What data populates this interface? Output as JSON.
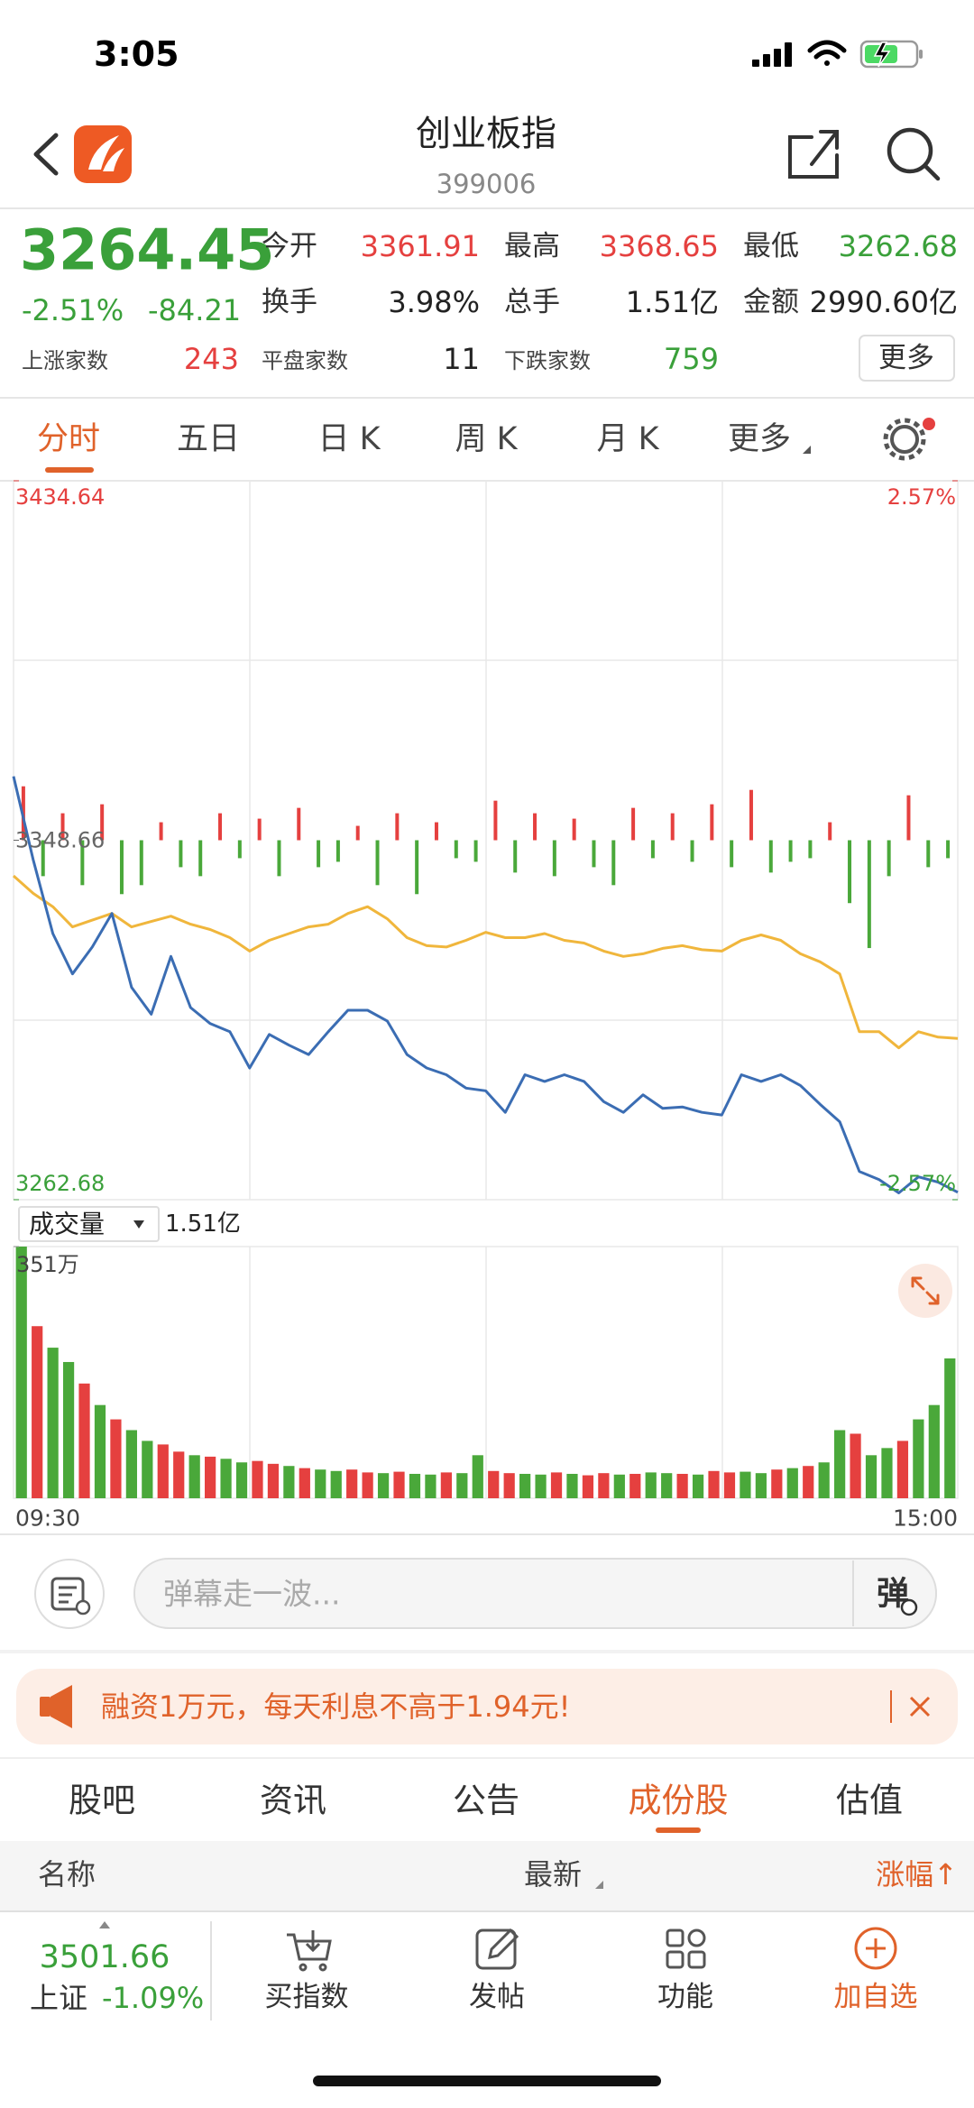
{
  "status_bar": {
    "time": "3:05"
  },
  "header": {
    "title": "创业板指",
    "code": "399006"
  },
  "quote": {
    "price": "3264.45",
    "change_pct": "-2.51%",
    "change": "-84.21",
    "stats": [
      [
        "今开",
        "3361.91"
      ],
      [
        "最高",
        "3368.65"
      ],
      [
        "最低",
        "3262.68"
      ],
      [
        "换手",
        "3.98%"
      ],
      [
        "总手",
        "1.51亿"
      ],
      [
        "金额",
        "2990.60亿"
      ]
    ],
    "breadth": [
      [
        "上涨家数",
        "243"
      ],
      [
        "平盘家数",
        "11"
      ],
      [
        "下跌家数",
        "759"
      ]
    ],
    "more": "更多"
  },
  "chart_tabs": [
    "分时",
    "五日",
    "日 K",
    "周 K",
    "月 K",
    "更多"
  ],
  "intraday": {
    "type": "line",
    "ylim": [
      3262.68,
      3434.64
    ],
    "yticks": [
      3262.68,
      3348.66,
      3434.64
    ],
    "y2lim": [
      -2.57,
      2.57
    ],
    "y2ticks": [
      {
        "value": -2.57,
        "label": "-2.57%"
      },
      {
        "value": 2.57,
        "label": "2.57%"
      }
    ],
    "xlabels": [
      "09:30",
      "15:00"
    ],
    "price_color": "#3b6db3",
    "avg_color": "#f0b63c",
    "up_color": "#e5403f",
    "down_color": "#4aa83a",
    "price": [
      3363.93,
      3344.0,
      3326.32,
      3316.68,
      3323.11,
      3331.14,
      3313.46,
      3307.04,
      3320.86,
      3308.64,
      3304.79,
      3302.86,
      3294.18,
      3302.21,
      3299.64,
      3297.39,
      3302.86,
      3308.0,
      3308.0,
      3305.43,
      3297.39,
      3294.18,
      3292.57,
      3289.36,
      3288.72,
      3283.57,
      3292.57,
      3290.97,
      3292.57,
      3290.97,
      3286.14,
      3283.57,
      3287.75,
      3284.54,
      3284.86,
      3283.57,
      3282.93,
      3292.57,
      3290.97,
      3292.57,
      3290.0,
      3285.5,
      3281.32,
      3269.43,
      3267.5,
      3264.29,
      3268.14,
      3266.86,
      3264.45
    ],
    "average": [
      3340.14,
      3335.96,
      3332.75,
      3327.93,
      3329.54,
      3331.14,
      3327.93,
      3329.21,
      3330.5,
      3328.57,
      3327.29,
      3325.36,
      3322.14,
      3324.71,
      3326.32,
      3327.93,
      3328.57,
      3331.14,
      3332.75,
      3329.86,
      3325.36,
      3323.43,
      3323.11,
      3324.71,
      3326.64,
      3325.36,
      3325.36,
      3326.32,
      3324.71,
      3324.07,
      3322.14,
      3320.86,
      3321.5,
      3322.79,
      3323.43,
      3322.46,
      3322.14,
      3324.71,
      3326.0,
      3324.71,
      3321.5,
      3319.57,
      3316.68,
      3302.86,
      3302.86,
      3299.0,
      3302.86,
      3301.57,
      3301.25
    ],
    "breadth_lim": [
      -100,
      100
    ],
    "breadth": [
      30,
      -20,
      15,
      -25,
      20,
      -30,
      -25,
      10,
      -15,
      -20,
      15,
      -10,
      12,
      -20,
      18,
      -15,
      -12,
      8,
      -25,
      15,
      -30,
      10,
      -10,
      -12,
      22,
      -18,
      15,
      -20,
      12,
      -15,
      -25,
      18,
      -10,
      15,
      -12,
      20,
      -15,
      28,
      -18,
      -12,
      -10,
      10,
      -35,
      -60,
      -20,
      25,
      -15,
      -10
    ]
  },
  "volume": {
    "type": "bar",
    "label": "成交量",
    "total": "1.51亿",
    "ylim": [
      0,
      351
    ],
    "yticks": [
      {
        "value": 351,
        "label": "351万"
      }
    ],
    "values": [
      351,
      240,
      210,
      190,
      160,
      130,
      110,
      95,
      80,
      75,
      65,
      60,
      58,
      55,
      50,
      52,
      48,
      45,
      42,
      40,
      38,
      40,
      36,
      35,
      37,
      34,
      33,
      36,
      35,
      60,
      38,
      35,
      34,
      33,
      36,
      34,
      32,
      35,
      33,
      34,
      36,
      35,
      34,
      33,
      38,
      36,
      37,
      35,
      40,
      42,
      45,
      50,
      95,
      90,
      60,
      70,
      80,
      110,
      130,
      195
    ],
    "colors": [
      "#4aa83a",
      "#e5403f",
      "#4aa83a",
      "#4aa83a",
      "#e5403f",
      "#4aa83a",
      "#e5403f",
      "#4aa83a",
      "#4aa83a",
      "#e5403f",
      "#e5403f",
      "#4aa83a",
      "#e5403f",
      "#4aa83a",
      "#4aa83a",
      "#e5403f",
      "#e5403f",
      "#4aa83a",
      "#e5403f",
      "#4aa83a",
      "#4aa83a",
      "#e5403f",
      "#e5403f",
      "#4aa83a",
      "#e5403f",
      "#4aa83a",
      "#4aa83a",
      "#e5403f",
      "#4aa83a",
      "#4aa83a",
      "#e5403f",
      "#e5403f",
      "#4aa83a",
      "#4aa83a",
      "#e5403f",
      "#4aa83a",
      "#e5403f",
      "#e5403f",
      "#4aa83a",
      "#e5403f",
      "#4aa83a",
      "#4aa83a",
      "#e5403f",
      "#4aa83a",
      "#e5403f",
      "#e5403f",
      "#4aa83a",
      "#4aa83a",
      "#e5403f",
      "#4aa83a",
      "#e5403f",
      "#4aa83a",
      "#4aa83a",
      "#e5403f",
      "#4aa83a",
      "#4aa83a",
      "#e5403f",
      "#4aa83a",
      "#4aa83a",
      "#4aa83a"
    ]
  },
  "danmu": {
    "placeholder": "弹幕走一波...",
    "button": "弹"
  },
  "promo": "融资1万元，每天利息不高于1.94元!",
  "section_tabs": [
    "股吧",
    "资讯",
    "公告",
    "成份股",
    "估值"
  ],
  "table_header": [
    "名称",
    "最新",
    "涨幅↑"
  ],
  "bottom_bar": {
    "index_value": "3501.66",
    "index_name": "上证",
    "index_change": "-1.09%",
    "actions": [
      "买指数",
      "发帖",
      "功能",
      "加自选"
    ]
  }
}
